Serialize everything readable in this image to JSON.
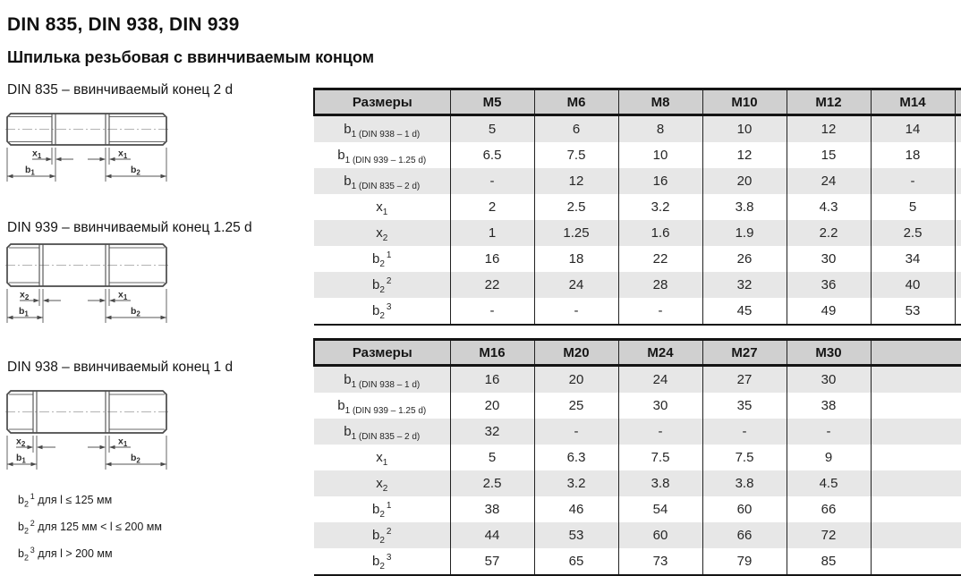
{
  "page": {
    "title": "DIN 835, DIN 938, DIN 939",
    "subtitle": "Шпилька резьбовая с ввинчиваемым концом"
  },
  "colors": {
    "table_header_bg": "#d0d0d0",
    "table_shaded_row_bg": "#e7e7e7",
    "table_border": "#141414",
    "drawing_line": "#4a4a4a"
  },
  "drawings": [
    {
      "caption": "DIN 835 – ввинчиваемый конец 2 d",
      "dims": {
        "x_left": {
          "base": "x",
          "sub": "1"
        },
        "x_right": {
          "base": "x",
          "sub": "1"
        },
        "b_left": {
          "base": "b",
          "sub": "1"
        },
        "b_right": {
          "base": "b",
          "sub": "2"
        }
      }
    },
    {
      "caption": "DIN 939 – ввинчиваемый конец 1.25 d",
      "dims": {
        "x_left": {
          "base": "x",
          "sub": "2"
        },
        "x_right": {
          "base": "x",
          "sub": "1"
        },
        "b_left": {
          "base": "b",
          "sub": "1"
        },
        "b_right": {
          "base": "b",
          "sub": "2"
        }
      }
    },
    {
      "caption": "DIN 938 – ввинчиваемый конец 1 d",
      "dims": {
        "x_left": {
          "base": "x",
          "sub": "2"
        },
        "x_right": {
          "base": "x",
          "sub": "1"
        },
        "b_left": {
          "base": "b",
          "sub": "1"
        },
        "b_right": {
          "base": "b",
          "sub": "2"
        }
      }
    }
  ],
  "tables": [
    {
      "header": [
        "Размеры",
        "M5",
        "M6",
        "M8",
        "M10",
        "M12",
        "M14",
        ""
      ],
      "rows": [
        {
          "label": {
            "base": "b",
            "sub": "1 (DIN 938 – 1 d)"
          },
          "values": [
            "5",
            "6",
            "8",
            "10",
            "12",
            "14",
            ""
          ]
        },
        {
          "label": {
            "base": "b",
            "sub": "1 (DIN 939 – 1.25 d)"
          },
          "values": [
            "6.5",
            "7.5",
            "10",
            "12",
            "15",
            "18",
            ""
          ]
        },
        {
          "label": {
            "base": "b",
            "sub": "1 (DIN 835 – 2 d)"
          },
          "values": [
            "-",
            "12",
            "16",
            "20",
            "24",
            "-",
            ""
          ]
        },
        {
          "label": {
            "base": "x",
            "sub": "1"
          },
          "values": [
            "2",
            "2.5",
            "3.2",
            "3.8",
            "4.3",
            "5",
            ""
          ]
        },
        {
          "label": {
            "base": "x",
            "sub": "2"
          },
          "values": [
            "1",
            "1.25",
            "1.6",
            "1.9",
            "2.2",
            "2.5",
            ""
          ]
        },
        {
          "label": {
            "base": "b",
            "sub": "2",
            "sup": "1"
          },
          "values": [
            "16",
            "18",
            "22",
            "26",
            "30",
            "34",
            ""
          ]
        },
        {
          "label": {
            "base": "b",
            "sub": "2",
            "sup": "2"
          },
          "values": [
            "22",
            "24",
            "28",
            "32",
            "36",
            "40",
            ""
          ]
        },
        {
          "label": {
            "base": "b",
            "sub": "2",
            "sup": "3"
          },
          "values": [
            "-",
            "-",
            "-",
            "45",
            "49",
            "53",
            ""
          ]
        }
      ]
    },
    {
      "header": [
        "Размеры",
        "M16",
        "M20",
        "M24",
        "M27",
        "M30",
        ""
      ],
      "rows": [
        {
          "label": {
            "base": "b",
            "sub": "1 (DIN 938 – 1 d)"
          },
          "values": [
            "16",
            "20",
            "24",
            "27",
            "30",
            ""
          ]
        },
        {
          "label": {
            "base": "b",
            "sub": "1 (DIN 939 – 1.25 d)"
          },
          "values": [
            "20",
            "25",
            "30",
            "35",
            "38",
            ""
          ]
        },
        {
          "label": {
            "base": "b",
            "sub": "1 (DIN 835 – 2 d)"
          },
          "values": [
            "32",
            "-",
            "-",
            "-",
            "-",
            ""
          ]
        },
        {
          "label": {
            "base": "x",
            "sub": "1"
          },
          "values": [
            "5",
            "6.3",
            "7.5",
            "7.5",
            "9",
            ""
          ]
        },
        {
          "label": {
            "base": "x",
            "sub": "2"
          },
          "values": [
            "2.5",
            "3.2",
            "3.8",
            "3.8",
            "4.5",
            ""
          ]
        },
        {
          "label": {
            "base": "b",
            "sub": "2",
            "sup": "1"
          },
          "values": [
            "38",
            "46",
            "54",
            "60",
            "66",
            ""
          ]
        },
        {
          "label": {
            "base": "b",
            "sub": "2",
            "sup": "2"
          },
          "values": [
            "44",
            "53",
            "60",
            "66",
            "72",
            ""
          ]
        },
        {
          "label": {
            "base": "b",
            "sub": "2",
            "sup": "3"
          },
          "values": [
            "57",
            "65",
            "73",
            "79",
            "85",
            ""
          ]
        }
      ]
    }
  ],
  "footnotes": [
    {
      "label": {
        "base": "b",
        "sub": "2",
        "sup": "1"
      },
      "text": "для l ≤ 125 мм"
    },
    {
      "label": {
        "base": "b",
        "sub": "2",
        "sup": "2"
      },
      "text": "для 125 мм < l ≤ 200 мм"
    },
    {
      "label": {
        "base": "b",
        "sub": "2",
        "sup": "3"
      },
      "text": "для l > 200 мм"
    }
  ]
}
